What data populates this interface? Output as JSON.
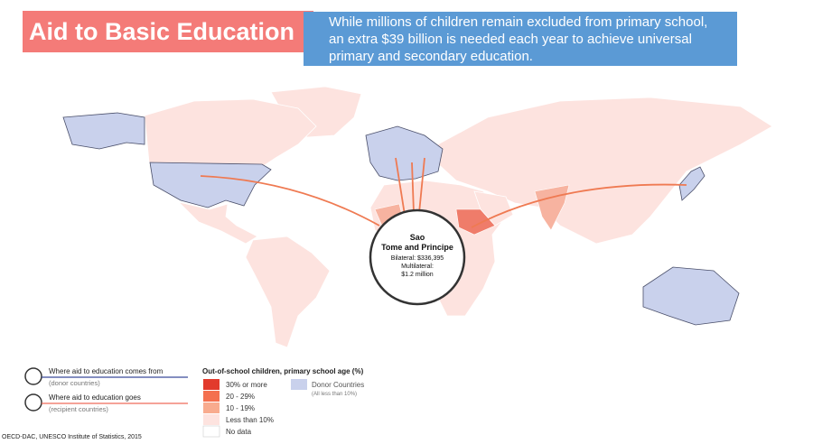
{
  "header": {
    "title": "Aid to Basic Education",
    "subtitle": [
      "While millions of children remain excluded from primary school,",
      "an extra $39 billion is needed each year to achieve universal",
      "primary and secondary education."
    ]
  },
  "popup": {
    "title": [
      "Sao",
      "Tome and Principe"
    ],
    "bilateral": "Bilateral: $336,395",
    "multilateral_label": "Multilateral:",
    "multilateral": "$1.2 million"
  },
  "legend": {
    "flows": [
      {
        "label": "Where aid to education comes from",
        "note": "(donor countries)"
      },
      {
        "label": "Where aid to education  goes",
        "note": "(recipient countries)"
      }
    ],
    "title": "Out-of-school children, primary school age (%)",
    "items": [
      "30% or more",
      "20 - 29%",
      "10 - 19%",
      "Less than 10%",
      "No data"
    ],
    "donor": "Donor Countries",
    "donor_note": "(All less than 10%)"
  },
  "source": "OECD-DAC, UNESCO Institute of Statistics, 2015"
}
